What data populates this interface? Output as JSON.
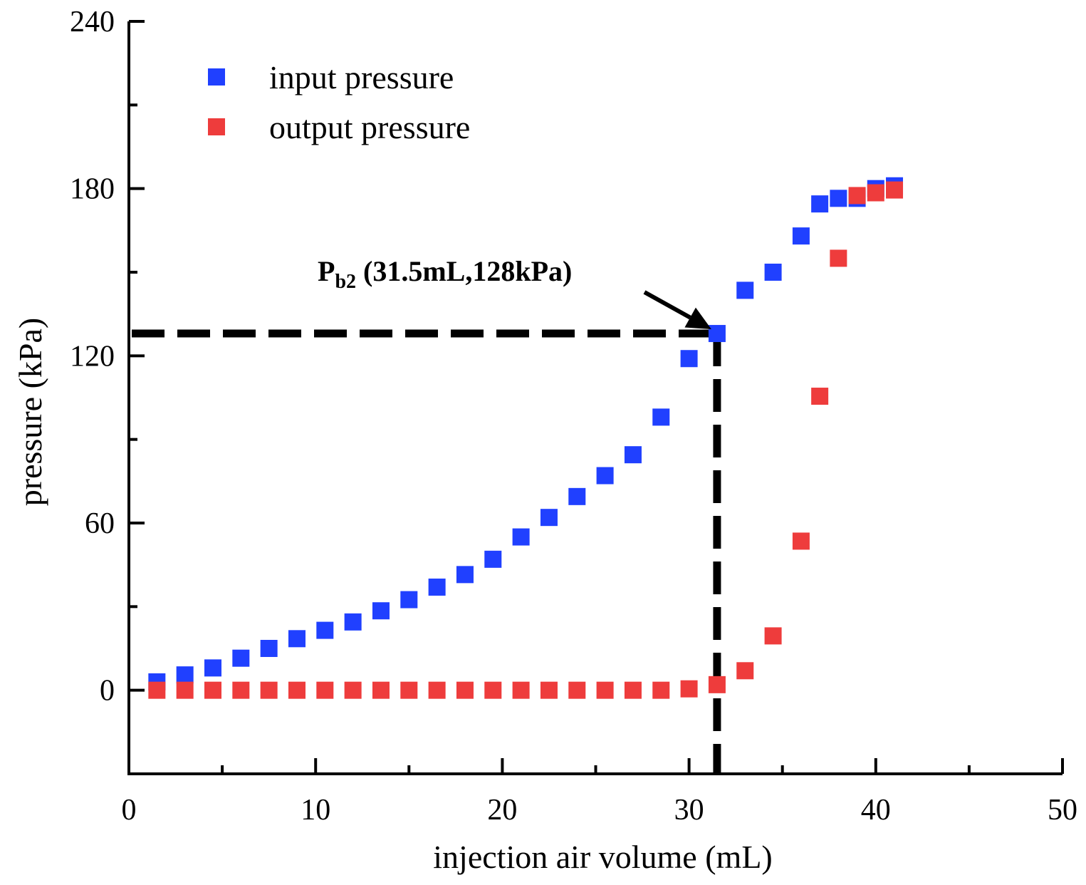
{
  "chart_data": {
    "type": "scatter",
    "title": "",
    "xlabel": "injection air volume (mL)",
    "ylabel": "pressure (kPa)",
    "xlim": [
      0,
      50
    ],
    "ylim": [
      -30,
      240
    ],
    "xticks": [
      0,
      10,
      20,
      30,
      40,
      50
    ],
    "yticks": [
      0,
      60,
      120,
      180,
      240
    ],
    "xtick_labels": [
      "0",
      "10",
      "20",
      "30",
      "40",
      "50"
    ],
    "ytick_labels": [
      "0",
      "60",
      "120",
      "180",
      "240"
    ],
    "grid": false,
    "legend_position": "top-left",
    "series": [
      {
        "name": "input pressure",
        "color": "#2040ff",
        "marker": "square",
        "x": [
          1.5,
          3,
          4.5,
          6,
          7.5,
          9,
          10.5,
          12,
          13.5,
          15,
          16.5,
          18,
          19.5,
          21,
          22.5,
          24,
          25.5,
          27,
          28.5,
          30,
          31.5,
          33,
          34.5,
          36,
          37,
          38,
          39,
          40,
          41
        ],
        "y": [
          3,
          5.5,
          8,
          11.5,
          15,
          18.5,
          21.5,
          24.5,
          28.5,
          32.5,
          37,
          41.5,
          47,
          55,
          62,
          69.5,
          77,
          84.5,
          98,
          119,
          128,
          143.5,
          150,
          163,
          174.5,
          176.5,
          176.5,
          180,
          181
        ]
      },
      {
        "name": "output pressure",
        "color": "#ee3c3c",
        "marker": "square",
        "x": [
          1.5,
          3,
          4.5,
          6,
          7.5,
          9,
          10.5,
          12,
          13.5,
          15,
          16.5,
          18,
          19.5,
          21,
          22.5,
          24,
          25.5,
          27,
          28.5,
          30,
          31.5,
          33,
          34.5,
          36,
          37,
          38,
          39,
          40,
          41
        ],
        "y": [
          0,
          0,
          0,
          0,
          0,
          0,
          0,
          0,
          0,
          0,
          0,
          0,
          0,
          0,
          0,
          0,
          0,
          0,
          0,
          0.5,
          2,
          7,
          19.5,
          53.5,
          105.5,
          155,
          177.5,
          178.5,
          179.5
        ]
      }
    ],
    "annotations": [
      {
        "label_main": "P",
        "label_sub": "b2",
        "label_rest": " (31.5mL,128kPa)",
        "x": 31.5,
        "y": 128,
        "style": "dashed reference lines to axes with arrow pointing at point"
      }
    ]
  }
}
